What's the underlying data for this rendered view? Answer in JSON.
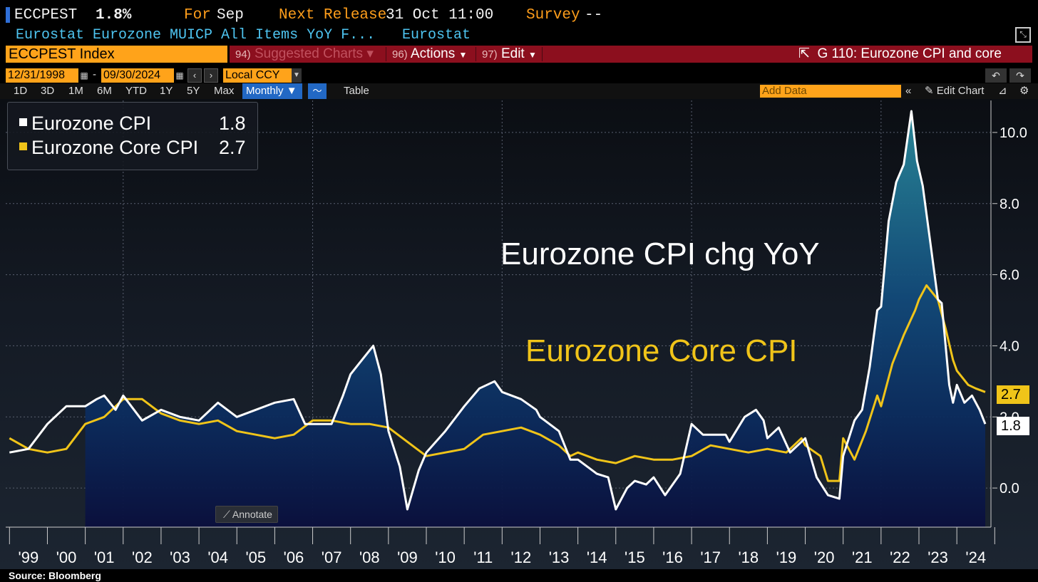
{
  "header": {
    "ticker": "ECCPEST",
    "last_value": "1.8%",
    "for_label": "For",
    "for_period": "Sep",
    "next_release_label": "Next Release",
    "next_release_value": "31 Oct 11:00",
    "survey_label": "Survey",
    "survey_value": "--",
    "description": "Eurostat Eurozone MUICP All Items YoY F...",
    "source_name": "Eurostat"
  },
  "toolbar": {
    "security": "ECCPEST Index",
    "suggested_num": "94)",
    "suggested_label": "Suggested Charts",
    "actions_num": "96)",
    "actions_label": "Actions",
    "edit_num": "97)",
    "edit_label": "Edit",
    "chart_title": "G 110: Eurozone CPI and core"
  },
  "range": {
    "start_date": "12/31/1998",
    "dash": "-",
    "end_date": "09/30/2024",
    "currency": "Local CCY"
  },
  "periods": [
    "1D",
    "3D",
    "1M",
    "6M",
    "YTD",
    "1Y",
    "5Y",
    "Max"
  ],
  "view": {
    "frequency": "Monthly",
    "table_label": "Table",
    "add_data_placeholder": "Add Data",
    "edit_chart_label": "Edit Chart",
    "annotate_label": "Annotate"
  },
  "legend": {
    "items": [
      {
        "name": "Eurozone CPI",
        "value": "1.8",
        "color": "#ffffff"
      },
      {
        "name": "Eurozone Core CPI",
        "value": "2.7",
        "color": "#f0c419"
      }
    ]
  },
  "chart_overlay": {
    "cpi_title": "Eurozone CPI chg YoY",
    "core_title": "Eurozone Core CPI"
  },
  "value_tags": {
    "core": "2.7",
    "cpi": "1.8"
  },
  "source": "Source:  Bloomberg",
  "chart_data": {
    "type": "line",
    "title": "Eurozone CPI chg YoY",
    "x_unit": "year",
    "x_range": [
      1998.9,
      2024.9
    ],
    "ylim": [
      -1.1,
      10.9
    ],
    "y_ticks": [
      0.0,
      2.0,
      4.0,
      6.0,
      8.0,
      10.0
    ],
    "y_tick_labels": [
      "0.0",
      "2.0",
      "4.0",
      "6.0",
      "8.0",
      "10.0"
    ],
    "x_tick_labels": [
      "'99",
      "'00",
      "'01",
      "'02",
      "'03",
      "'04",
      "'05",
      "'06",
      "'07",
      "'08",
      "'09",
      "'10",
      "'11",
      "'12",
      "'13",
      "'14",
      "'15",
      "'16",
      "'17",
      "'18",
      "'19",
      "'20",
      "'21",
      "'22",
      "'23",
      "'24"
    ],
    "grid": true,
    "legend_position": "top-left",
    "series": [
      {
        "name": "Eurozone CPI",
        "color": "#ffffff",
        "points": [
          [
            1999.0,
            1.0
          ],
          [
            1999.5,
            1.1
          ],
          [
            2000.0,
            1.8
          ],
          [
            2000.5,
            2.3
          ],
          [
            2001.0,
            2.3
          ],
          [
            2001.3,
            2.5
          ],
          [
            2001.5,
            2.6
          ],
          [
            2001.8,
            2.2
          ],
          [
            2002.0,
            2.6
          ],
          [
            2002.5,
            1.9
          ],
          [
            2003.0,
            2.2
          ],
          [
            2003.5,
            2.0
          ],
          [
            2004.0,
            1.9
          ],
          [
            2004.5,
            2.4
          ],
          [
            2005.0,
            2.0
          ],
          [
            2005.5,
            2.2
          ],
          [
            2006.0,
            2.4
          ],
          [
            2006.5,
            2.5
          ],
          [
            2006.8,
            1.8
          ],
          [
            2007.0,
            1.8
          ],
          [
            2007.5,
            1.8
          ],
          [
            2007.8,
            2.6
          ],
          [
            2008.0,
            3.2
          ],
          [
            2008.3,
            3.6
          ],
          [
            2008.6,
            4.0
          ],
          [
            2008.8,
            3.2
          ],
          [
            2009.0,
            1.6
          ],
          [
            2009.3,
            0.6
          ],
          [
            2009.5,
            -0.6
          ],
          [
            2009.8,
            0.5
          ],
          [
            2010.0,
            1.0
          ],
          [
            2010.5,
            1.6
          ],
          [
            2011.0,
            2.3
          ],
          [
            2011.4,
            2.8
          ],
          [
            2011.8,
            3.0
          ],
          [
            2012.0,
            2.7
          ],
          [
            2012.5,
            2.5
          ],
          [
            2012.9,
            2.2
          ],
          [
            2013.0,
            2.0
          ],
          [
            2013.5,
            1.6
          ],
          [
            2013.8,
            0.8
          ],
          [
            2014.0,
            0.8
          ],
          [
            2014.5,
            0.4
          ],
          [
            2014.8,
            0.3
          ],
          [
            2015.0,
            -0.6
          ],
          [
            2015.3,
            0.0
          ],
          [
            2015.5,
            0.2
          ],
          [
            2015.8,
            0.1
          ],
          [
            2016.0,
            0.3
          ],
          [
            2016.3,
            -0.2
          ],
          [
            2016.7,
            0.4
          ],
          [
            2017.0,
            1.8
          ],
          [
            2017.3,
            1.5
          ],
          [
            2017.6,
            1.5
          ],
          [
            2017.9,
            1.5
          ],
          [
            2018.0,
            1.3
          ],
          [
            2018.4,
            2.0
          ],
          [
            2018.7,
            2.2
          ],
          [
            2018.9,
            1.9
          ],
          [
            2019.0,
            1.4
          ],
          [
            2019.3,
            1.7
          ],
          [
            2019.6,
            1.0
          ],
          [
            2019.9,
            1.3
          ],
          [
            2020.0,
            1.4
          ],
          [
            2020.3,
            0.3
          ],
          [
            2020.6,
            -0.2
          ],
          [
            2020.9,
            -0.3
          ],
          [
            2021.0,
            0.9
          ],
          [
            2021.3,
            1.9
          ],
          [
            2021.5,
            2.2
          ],
          [
            2021.7,
            3.4
          ],
          [
            2021.9,
            5.0
          ],
          [
            2022.0,
            5.1
          ],
          [
            2022.2,
            7.5
          ],
          [
            2022.4,
            8.6
          ],
          [
            2022.6,
            9.1
          ],
          [
            2022.8,
            10.6
          ],
          [
            2022.95,
            9.2
          ],
          [
            2023.1,
            8.5
          ],
          [
            2023.3,
            6.9
          ],
          [
            2023.5,
            5.3
          ],
          [
            2023.6,
            5.2
          ],
          [
            2023.8,
            2.9
          ],
          [
            2023.9,
            2.4
          ],
          [
            2024.0,
            2.9
          ],
          [
            2024.2,
            2.4
          ],
          [
            2024.4,
            2.6
          ],
          [
            2024.6,
            2.2
          ],
          [
            2024.75,
            1.8
          ]
        ]
      },
      {
        "name": "Eurozone Core CPI",
        "color": "#f0c419",
        "points": [
          [
            1999.0,
            1.4
          ],
          [
            1999.5,
            1.1
          ],
          [
            2000.0,
            1.0
          ],
          [
            2000.5,
            1.1
          ],
          [
            2001.0,
            1.8
          ],
          [
            2001.5,
            2.0
          ],
          [
            2002.0,
            2.5
          ],
          [
            2002.5,
            2.5
          ],
          [
            2003.0,
            2.1
          ],
          [
            2003.5,
            1.9
          ],
          [
            2004.0,
            1.8
          ],
          [
            2004.5,
            1.9
          ],
          [
            2005.0,
            1.6
          ],
          [
            2005.5,
            1.5
          ],
          [
            2006.0,
            1.4
          ],
          [
            2006.5,
            1.5
          ],
          [
            2007.0,
            1.9
          ],
          [
            2007.5,
            1.9
          ],
          [
            2008.0,
            1.8
          ],
          [
            2008.5,
            1.8
          ],
          [
            2009.0,
            1.7
          ],
          [
            2009.5,
            1.3
          ],
          [
            2010.0,
            0.9
          ],
          [
            2010.5,
            1.0
          ],
          [
            2011.0,
            1.1
          ],
          [
            2011.5,
            1.5
          ],
          [
            2012.0,
            1.6
          ],
          [
            2012.5,
            1.7
          ],
          [
            2013.0,
            1.5
          ],
          [
            2013.5,
            1.2
          ],
          [
            2013.8,
            0.9
          ],
          [
            2014.0,
            1.0
          ],
          [
            2014.5,
            0.8
          ],
          [
            2015.0,
            0.7
          ],
          [
            2015.5,
            0.9
          ],
          [
            2016.0,
            0.8
          ],
          [
            2016.5,
            0.8
          ],
          [
            2017.0,
            0.9
          ],
          [
            2017.5,
            1.2
          ],
          [
            2018.0,
            1.1
          ],
          [
            2018.5,
            1.0
          ],
          [
            2019.0,
            1.1
          ],
          [
            2019.5,
            1.0
          ],
          [
            2019.9,
            1.4
          ],
          [
            2020.0,
            1.2
          ],
          [
            2020.4,
            0.9
          ],
          [
            2020.6,
            0.2
          ],
          [
            2020.9,
            0.2
          ],
          [
            2021.0,
            1.4
          ],
          [
            2021.3,
            0.8
          ],
          [
            2021.6,
            1.6
          ],
          [
            2021.9,
            2.6
          ],
          [
            2022.0,
            2.3
          ],
          [
            2022.3,
            3.5
          ],
          [
            2022.6,
            4.3
          ],
          [
            2022.9,
            5.0
          ],
          [
            2023.0,
            5.3
          ],
          [
            2023.2,
            5.7
          ],
          [
            2023.5,
            5.3
          ],
          [
            2023.7,
            4.5
          ],
          [
            2023.9,
            3.6
          ],
          [
            2024.0,
            3.3
          ],
          [
            2024.3,
            2.9
          ],
          [
            2024.5,
            2.8
          ],
          [
            2024.75,
            2.7
          ]
        ]
      }
    ]
  }
}
